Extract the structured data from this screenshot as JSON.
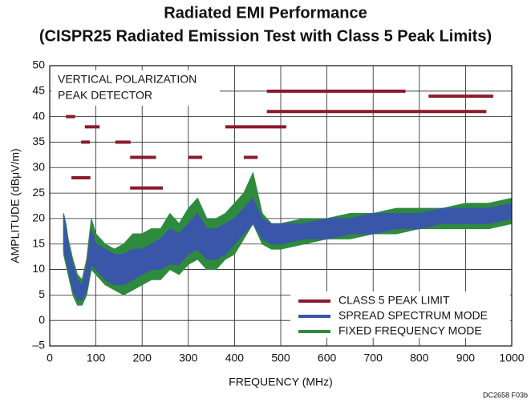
{
  "chart_data": {
    "type": "band",
    "title": "Radiated EMI Performance",
    "subtitle": "(CISPR25 Radiated Emission Test with Class 5 Peak Limits)",
    "x_label": "FREQUENCY (MHz)",
    "y_label": "AMPLITUDE (dBμV/m)",
    "annotations": [
      "VERTICAL POLARIZATION",
      "PEAK DETECTOR"
    ],
    "footnote": "DC2658 F03b",
    "xlim": [
      0,
      1000
    ],
    "xticks": [
      0,
      100,
      200,
      300,
      400,
      500,
      600,
      700,
      800,
      900,
      1000
    ],
    "ylim": [
      -5,
      50
    ],
    "yticks": [
      {
        "value": -5,
        "label": "–5"
      },
      0,
      5,
      10,
      15,
      20,
      25,
      30,
      35,
      40,
      45,
      50
    ],
    "grid": true,
    "legend": "lower right",
    "limit_name": "CLASS 5 PEAK LIMIT",
    "limit_color": "#8b1a2b",
    "limits": [
      {
        "x": [
          35,
          55
        ],
        "y": 40
      },
      {
        "x": [
          76,
          108
        ],
        "y": 38
      },
      {
        "x": [
          68,
          87
        ],
        "y": 35
      },
      {
        "x": [
          142,
          175
        ],
        "y": 35
      },
      {
        "x": [
          174,
          230
        ],
        "y": 32
      },
      {
        "x": [
          300,
          330
        ],
        "y": 32
      },
      {
        "x": [
          47,
          88
        ],
        "y": 28
      },
      {
        "x": [
          174,
          245
        ],
        "y": 26
      },
      {
        "x": [
          380,
          512
        ],
        "y": 38
      },
      {
        "x": [
          420,
          450
        ],
        "y": 32
      },
      {
        "x": [
          470,
          770
        ],
        "y": 45
      },
      {
        "x": [
          470,
          945
        ],
        "y": 41
      },
      {
        "x": [
          820,
          960
        ],
        "y": 44
      }
    ],
    "x": [
      30,
      35,
      40,
      50,
      60,
      70,
      80,
      90,
      100,
      120,
      140,
      160,
      180,
      200,
      220,
      240,
      260,
      280,
      300,
      320,
      340,
      360,
      380,
      400,
      420,
      440,
      460,
      480,
      500,
      550,
      600,
      650,
      700,
      750,
      800,
      850,
      900,
      950,
      1000
    ],
    "series": [
      {
        "name": "FIXED FREQUENCY MODE",
        "color": "#2e8b3e",
        "low": [
          13,
          11,
          9,
          5,
          3,
          3,
          5,
          10,
          9,
          7,
          6,
          5,
          6,
          7,
          8,
          8,
          10,
          9,
          11,
          12,
          10,
          10,
          12,
          13,
          16,
          19,
          15,
          14,
          14,
          15,
          16,
          16,
          17,
          17,
          18,
          18,
          18,
          18,
          19
        ],
        "high": [
          21,
          19,
          16,
          12,
          9,
          8,
          12,
          20,
          17,
          15,
          14,
          15,
          17,
          17,
          18,
          18,
          21,
          19,
          22,
          24,
          20,
          20,
          21,
          23,
          25,
          29,
          21,
          19,
          19,
          20,
          20,
          21,
          21,
          22,
          22,
          22,
          23,
          23,
          24
        ]
      },
      {
        "name": "SPREAD SPECTRUM MODE",
        "color": "#3a56a8",
        "low": [
          14,
          12,
          10,
          6,
          4,
          4,
          6,
          11,
          10,
          8,
          7,
          7,
          8,
          9,
          10,
          10,
          11,
          11,
          13,
          14,
          12,
          12,
          13,
          15,
          17,
          19,
          16,
          15,
          15,
          16,
          16,
          17,
          17,
          18,
          18,
          19,
          19,
          19,
          20
        ],
        "high": [
          21,
          18,
          15,
          11,
          8,
          7,
          11,
          18,
          15,
          14,
          13,
          13,
          14,
          14,
          15,
          16,
          18,
          17,
          19,
          21,
          18,
          18,
          19,
          20,
          22,
          24,
          20,
          19,
          19,
          19,
          20,
          20,
          21,
          21,
          21,
          22,
          22,
          22,
          23
        ]
      }
    ]
  }
}
